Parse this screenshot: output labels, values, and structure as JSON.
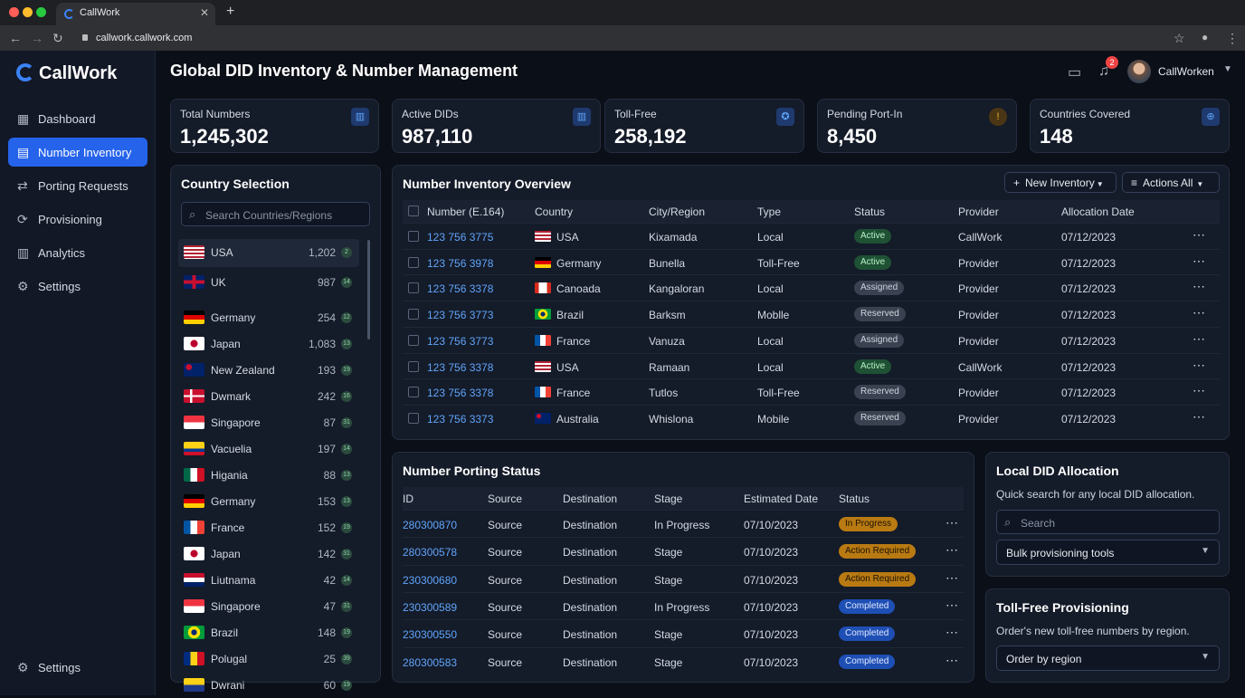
{
  "browser": {
    "tab_title": "CallWork",
    "url": "callwork.callwork.com"
  },
  "sidebar": {
    "logo": "CallWork",
    "items": [
      {
        "label": "Dashboard",
        "icon": "dashboard-icon"
      },
      {
        "label": "Number Inventory",
        "icon": "list-icon"
      },
      {
        "label": "Porting Requests",
        "icon": "swap-icon"
      },
      {
        "label": "Provisioning",
        "icon": "refresh-icon"
      },
      {
        "label": "Analytics",
        "icon": "chart-icon"
      },
      {
        "label": "Settings",
        "icon": "gear-icon"
      }
    ],
    "bottom": "Settings"
  },
  "header": {
    "title": "Global DID Inventory & Number Management",
    "notif_count": "2",
    "user": "CallWorken"
  },
  "stats": [
    {
      "label": "Total Numbers",
      "value": "1,245,302"
    },
    {
      "label": "Active DIDs",
      "value": "987,110"
    },
    {
      "label": "Toll-Free",
      "value": "258,192"
    },
    {
      "label": "Pending Port-In",
      "value": "8,450"
    },
    {
      "label": "Countries Covered",
      "value": "148"
    }
  ],
  "countries": {
    "title": "Country Selection",
    "search_placeholder": "Search Countries/Regions",
    "items": [
      {
        "name": "USA",
        "count": "1,202",
        "badge": "2"
      },
      {
        "name": "UK",
        "count": "987",
        "badge": "14"
      },
      {
        "name": "Germany",
        "count": "254",
        "badge": "12"
      },
      {
        "name": "Japan",
        "count": "1,083",
        "badge": "13"
      },
      {
        "name": "New Zealand",
        "count": "193",
        "badge": "19"
      },
      {
        "name": "Dwmark",
        "count": "242",
        "badge": "16"
      },
      {
        "name": "Singapore",
        "count": "87",
        "badge": "31"
      },
      {
        "name": "Vacuelia",
        "count": "197",
        "badge": "14"
      },
      {
        "name": "Higania",
        "count": "88",
        "badge": "13"
      },
      {
        "name": "Germany",
        "count": "153",
        "badge": "13"
      },
      {
        "name": "France",
        "count": "152",
        "badge": "19"
      },
      {
        "name": "Japan",
        "count": "142",
        "badge": "31"
      },
      {
        "name": "Liutnama",
        "count": "42",
        "badge": "14"
      },
      {
        "name": "Singapore",
        "count": "47",
        "badge": "31"
      },
      {
        "name": "Brazil",
        "count": "148",
        "badge": "19"
      },
      {
        "name": "Polugal",
        "count": "25",
        "badge": "39"
      },
      {
        "name": "Dwrani",
        "count": "60",
        "badge": "19"
      }
    ]
  },
  "inventory": {
    "title": "Number Inventory Overview",
    "new_button": "New Inventory",
    "actions_button": "Actions All",
    "columns": [
      "Number (E.164)",
      "Country",
      "City/Region",
      "Type",
      "Status",
      "Provider",
      "Allocation Date"
    ],
    "rows": [
      {
        "number": "123 756 3775",
        "country": "USA",
        "city": "Kixamada",
        "type": "Local",
        "status": "Active",
        "provider": "CallWork",
        "date": "07/12/2023"
      },
      {
        "number": "123 756 3978",
        "country": "Germany",
        "city": "Bunella",
        "type": "Toll-Free",
        "status": "Active",
        "provider": "Provider",
        "date": "07/12/2023"
      },
      {
        "number": "123 756 3378",
        "country": "Canoada",
        "city": "Kangaloran",
        "type": "Local",
        "status": "Assigned",
        "provider": "Provider",
        "date": "07/12/2023"
      },
      {
        "number": "123 756 3773",
        "country": "Brazil",
        "city": "Barksm",
        "type": "Moblle",
        "status": "Reserved",
        "provider": "Provider",
        "date": "07/12/2023"
      },
      {
        "number": "123 756 3773",
        "country": "France",
        "city": "Vanuza",
        "type": "Local",
        "status": "Assigned",
        "provider": "Provider",
        "date": "07/12/2023"
      },
      {
        "number": "123 756 3378",
        "country": "USA",
        "city": "Ramaan",
        "type": "Local",
        "status": "Active",
        "provider": "CallWork",
        "date": "07/12/2023"
      },
      {
        "number": "123 756 3378",
        "country": "France",
        "city": "Tutlos",
        "type": "Toll-Free",
        "status": "Reserved",
        "provider": "Provider",
        "date": "07/12/2023"
      },
      {
        "number": "123 756 3373",
        "country": "Australia",
        "city": "Whislona",
        "type": "Mobile",
        "status": "Reserved",
        "provider": "Provider",
        "date": "07/12/2023"
      }
    ]
  },
  "porting": {
    "title": "Number Porting Status",
    "columns": [
      "ID",
      "Source",
      "Destination",
      "Stage",
      "Estimated Date",
      "Status"
    ],
    "rows": [
      {
        "id": "280300870",
        "source": "Source",
        "destination": "Destination",
        "stage": "In Progress",
        "date": "07/10/2023",
        "status": "In Progress"
      },
      {
        "id": "280300578",
        "source": "Source",
        "destination": "Destination",
        "stage": "Stage",
        "date": "07/10/2023",
        "status": "Action Required"
      },
      {
        "id": "230300680",
        "source": "Source",
        "destination": "Destination",
        "stage": "Stage",
        "date": "07/10/2023",
        "status": "Action Required"
      },
      {
        "id": "230300589",
        "source": "Source",
        "destination": "Destination",
        "stage": "In Progress",
        "date": "07/10/2023",
        "status": "Completed"
      },
      {
        "id": "230300550",
        "source": "Source",
        "destination": "Destination",
        "stage": "Stage",
        "date": "07/10/2023",
        "status": "Completed"
      },
      {
        "id": "280300583",
        "source": "Source",
        "destination": "Destination",
        "stage": "Stage",
        "date": "07/10/2023",
        "status": "Completed"
      }
    ]
  },
  "local_did": {
    "title": "Local DID Allocation",
    "desc": "Quick search for any local DID allocation.",
    "search_placeholder": "Search",
    "select": "Bulk provisioning tools"
  },
  "toll_free": {
    "title": "Toll-Free Provisioning",
    "desc": "Order's new toll-free numbers by region.",
    "select": "Order by region"
  }
}
